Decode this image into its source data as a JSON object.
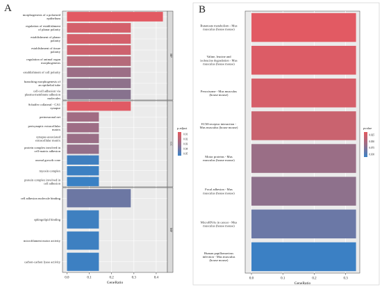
{
  "chart_data": [
    {
      "type": "bar",
      "orientation": "horizontal",
      "panel_label": "A",
      "xlabel": "GeneRatio",
      "xlim": [
        -0.02,
        0.45
      ],
      "xticks": [
        "0.0",
        "0.1",
        "0.2",
        "0.3",
        "0.4"
      ],
      "xtick_values": [
        0.0,
        0.1,
        0.2,
        0.3,
        0.4
      ],
      "legend": {
        "title": "p.adjust",
        "ticks": [
          "0.01",
          "0.02",
          "0.03",
          "0.04",
          "0.05"
        ],
        "placement": "right"
      },
      "facets": [
        {
          "name": "BP",
          "categories": [
            "morphogenesis of a polarized epithelium",
            "regulation of establishment of planar polarity",
            "establishment of planar polarity",
            "establishment of tissue polarity",
            "regulation of animal organ morphogenesis",
            "establishment of cell polarity",
            "branching morphogenesis of an epithelial tube",
            "cell-cell adhesion via plasma-membrane adhesion molecules"
          ],
          "labels": [
            "morphogenesis of a polarized\nepithelium",
            "regulation of establishment\nof planar polarity",
            "establishment of planar\npolarity",
            "establishment of tissue\npolarity",
            "regulation of animal organ\nmorphogenesis",
            "establishment of cell polarity",
            "branching morphogenesis of\nan epithelial tube",
            "cell-cell adhesion via\nplasma-membrane adhesion\nmolecules"
          ],
          "values": [
            0.43,
            0.286,
            0.286,
            0.286,
            0.286,
            0.286,
            0.286,
            0.286
          ],
          "colors": [
            "#e25a63",
            "#d4606b",
            "#d4606b",
            "#cd626e",
            "#b56a7a",
            "#9c6e86",
            "#8e718b",
            "#87728e"
          ]
        },
        {
          "name": "CC",
          "categories": [
            "Schaffer collateral - CA1 synapse",
            "perineuronal net",
            "perisynaptic extracellular matrix",
            "synapse-associated extracellular matrix",
            "protein complex involved in cell-matrix adhesion",
            "axonal growth cone",
            "myosin complex",
            "protein complex involved in cell adhesion"
          ],
          "labels": [
            "Schaffer collateral - CA1\nsynapse",
            "perineuronal net",
            "perisynaptic extracellular\nmatrix",
            "synapse-associated\nextracellular matrix",
            "protein complex involved in\ncell-matrix adhesion",
            "axonal growth cone",
            "myosin complex",
            "protein complex involved in\ncell adhesion"
          ],
          "values": [
            0.286,
            0.143,
            0.143,
            0.143,
            0.143,
            0.143,
            0.143,
            0.143
          ],
          "colors": [
            "#e05a64",
            "#a16c83",
            "#9e6d85",
            "#9a6e86",
            "#946f89",
            "#3f7fbf",
            "#3c80c2",
            "#3a81c4"
          ]
        },
        {
          "name": "MF",
          "categories": [
            "cell adhesion molecule binding",
            "sphingolipid binding",
            "microfilament motor activity",
            "carbon-carbon lyase activity"
          ],
          "labels": [
            "cell adhesion molecule binding",
            "sphingolipid binding",
            "microfilament motor activity",
            "carbon-carbon lyase activity"
          ],
          "values": [
            0.286,
            0.143,
            0.143,
            0.143
          ],
          "colors": [
            "#6c77a3",
            "#3f80c0",
            "#3e80c1",
            "#3d80c2"
          ]
        }
      ]
    },
    {
      "type": "bar",
      "orientation": "horizontal",
      "panel_label": "B",
      "xlabel": "GeneRatio",
      "xlim": [
        -0.02,
        0.345
      ],
      "xticks": [
        "0.0",
        "0.1",
        "0.2",
        "0.3"
      ],
      "xtick_values": [
        0.0,
        0.1,
        0.2,
        0.3
      ],
      "legend": {
        "title": "pvalue",
        "ticks": [
          "0.025",
          "0.050",
          "0.075",
          "0.100"
        ],
        "placement": "right"
      },
      "categories": [
        "Butanoate metabolism - Mus musculus (house mouse)",
        "Valine, leucine and isoleucine degradation - Mus musculus (house mouse)",
        "Peroxisome - Mus musculus (house mouse)",
        "ECM-receptor interaction - Mus musculus (house mouse)",
        "Motor proteins - Mus musculus (house mouse)",
        "Focal adhesion - Mus musculus (house mouse)",
        "MicroRNAs in cancer - Mus musculus (house mouse)",
        "Human papillomavirus infection - Mus musculus (house mouse)"
      ],
      "labels": [
        "Butanoate metabolism - Mus\nmusculus (house mouse)",
        "Valine, leucine and\nisoleucine degradation - Mus\nmusculus (house mouse)",
        "Peroxisome - Mus musculus\n(house mouse)",
        "ECM-receptor interaction -\nMus musculus (house mouse)",
        "Motor proteins - Mus\nmusculus (house mouse)",
        "Focal adhesion - Mus\nmusculus (house mouse)",
        "MicroRNAs in cancer - Mus\nmusculus (house mouse)",
        "Human papillomavirus\ninfection - Mus musculus\n(house mouse)"
      ],
      "values": [
        0.333,
        0.333,
        0.333,
        0.333,
        0.333,
        0.333,
        0.333,
        0.333
      ],
      "colors": [
        "#e25a63",
        "#dc5c66",
        "#d65e69",
        "#c9636f",
        "#9a6e86",
        "#8e718c",
        "#6b78a6",
        "#3b80c4"
      ]
    }
  ]
}
